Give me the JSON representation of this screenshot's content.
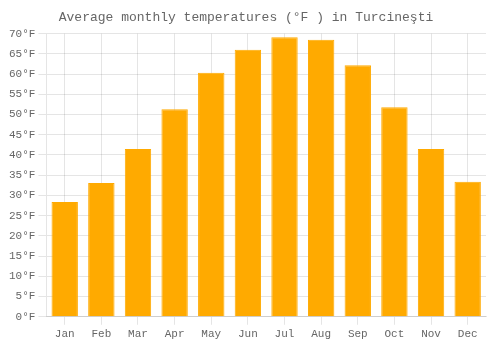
{
  "chart_data": {
    "type": "bar",
    "title": "Average monthly temperatures (°F ) in Turcineşti",
    "categories": [
      "Jan",
      "Feb",
      "Mar",
      "Apr",
      "May",
      "Jun",
      "Jul",
      "Aug",
      "Sep",
      "Oct",
      "Nov",
      "Dec"
    ],
    "values": [
      28.4,
      33.1,
      41.5,
      51.3,
      60.3,
      66.0,
      69.1,
      68.5,
      62.2,
      51.8,
      41.5,
      33.4
    ],
    "color": "#FFAA00",
    "ylim": [
      0,
      70
    ],
    "yticks": [
      {
        "value": 0,
        "label": "0°F"
      },
      {
        "value": 5,
        "label": "5°F"
      },
      {
        "value": 10,
        "label": "10°F"
      },
      {
        "value": 15,
        "label": "15°F"
      },
      {
        "value": 20,
        "label": "20°F"
      },
      {
        "value": 25,
        "label": "25°F"
      },
      {
        "value": 30,
        "label": "30°F"
      },
      {
        "value": 35,
        "label": "35°F"
      },
      {
        "value": 40,
        "label": "40°F"
      },
      {
        "value": 45,
        "label": "45°F"
      },
      {
        "value": 50,
        "label": "50°F"
      },
      {
        "value": 55,
        "label": "55°F"
      },
      {
        "value": 60,
        "label": "60°F"
      },
      {
        "value": 65,
        "label": "65°F"
      },
      {
        "value": 70,
        "label": "70°F"
      }
    ],
    "grid": true
  }
}
